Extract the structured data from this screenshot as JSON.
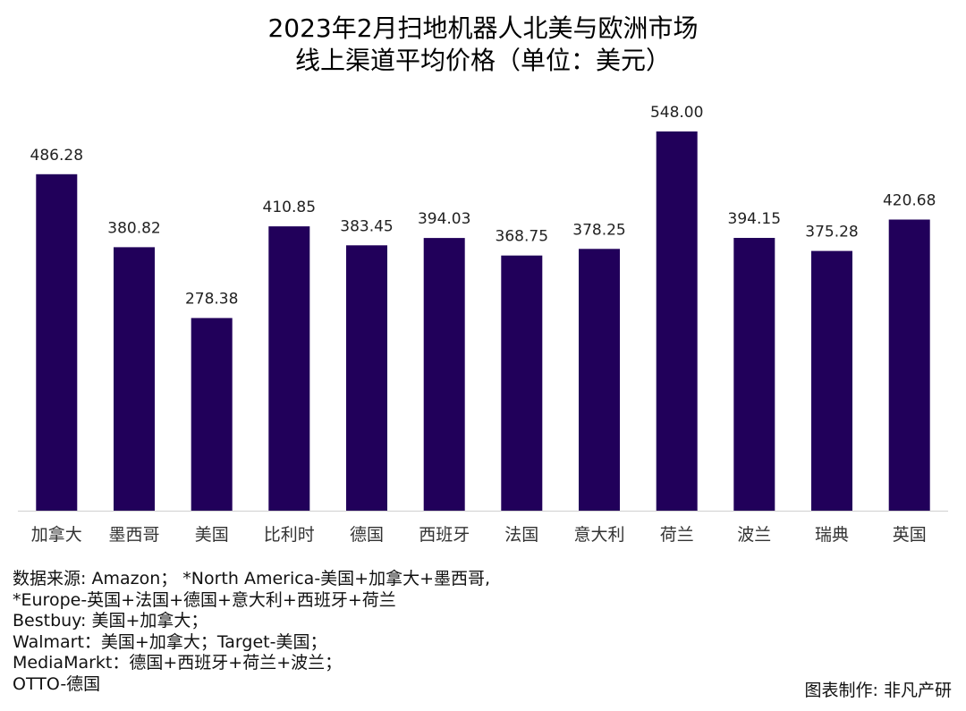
{
  "title": {
    "line1": "2023年2月扫地机器人北美与欧洲市场",
    "line2": "线上渠道平均价格（单位：美元）"
  },
  "chart_data": {
    "type": "bar",
    "categories": [
      "加拿大",
      "墨西哥",
      "美国",
      "比利时",
      "德国",
      "西班牙",
      "法国",
      "意大利",
      "荷兰",
      "波兰",
      "瑞典",
      "英国"
    ],
    "values": [
      486.28,
      380.82,
      278.38,
      410.85,
      383.45,
      394.03,
      368.75,
      378.25,
      548.0,
      394.15,
      375.28,
      420.68
    ],
    "value_labels": [
      "486.28",
      "380.82",
      "278.38",
      "410.85",
      "383.45",
      "394.03",
      "368.75",
      "378.25",
      "548.00",
      "394.15",
      "375.28",
      "420.68"
    ],
    "ylim": [
      0,
      548
    ],
    "xlabel": "",
    "ylabel": "",
    "grid": false,
    "colors": {
      "bar": "#21005a",
      "axis": "#d0d0d0"
    }
  },
  "notes": [
    "数据来源: Amazon；  *North America-美国+加拿大+墨西哥,",
    "*Europe-英国+法国+德国+意大利+西班牙+荷兰",
    "Bestbuy: 美国+加拿大；",
    "Walmart：美国+加拿大；Target-美国；",
    "MediaMarkt：德国+西班牙+荷兰+波兰；",
    "OTTO-德国"
  ],
  "credit": "图表制作: 非凡产研"
}
